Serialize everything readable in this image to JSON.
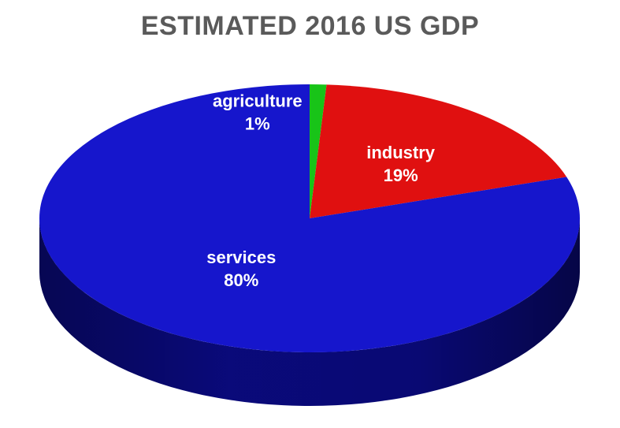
{
  "chart_data": {
    "type": "pie",
    "title": "ESTIMATED 2016 US GDP",
    "categories": [
      "agriculture",
      "industry",
      "services"
    ],
    "values": [
      1,
      19,
      80
    ],
    "value_labels": [
      "1%",
      "19%",
      "80%"
    ],
    "colors": [
      "#18c418",
      "#e01010",
      "#1616cc"
    ],
    "side_colors": [
      "#0c7a0c",
      "#8a0808",
      "#0a0a80"
    ],
    "style": "3d",
    "legend": "none"
  }
}
